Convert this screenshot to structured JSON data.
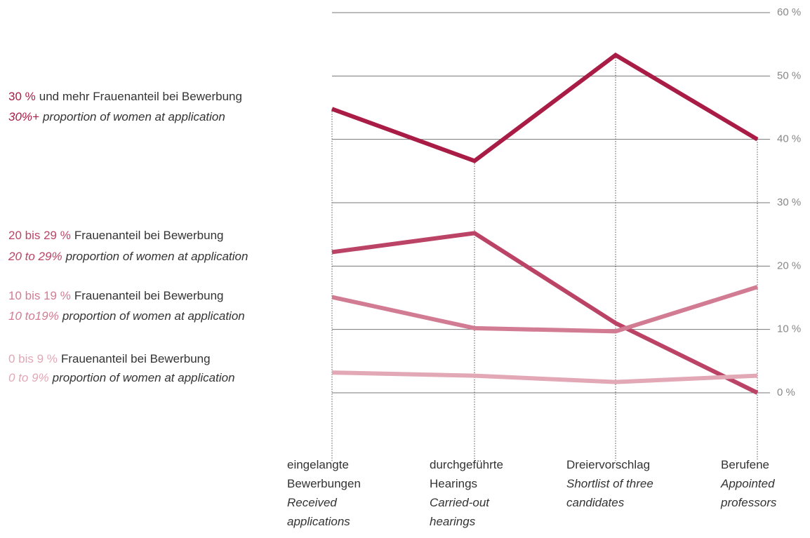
{
  "chart_data": {
    "type": "line",
    "categories": [
      {
        "de": [
          "eingelangte",
          "Bewerbungen"
        ],
        "en": [
          "Received",
          "applications"
        ]
      },
      {
        "de": [
          "durchgeführte",
          "Hearings"
        ],
        "en": [
          "Carried-out",
          "hearings"
        ]
      },
      {
        "de": [
          "Dreiervorschlag"
        ],
        "en": [
          "Shortlist of three",
          "candidates"
        ]
      },
      {
        "de": [
          "Berufene"
        ],
        "en": [
          "Appointed",
          "professors"
        ]
      }
    ],
    "series": [
      {
        "name": [
          "30 %",
          "und mehr Frauenanteil bei Bewerbung"
        ],
        "name_en": [
          "30%+",
          "proportion of women at application"
        ],
        "color": "#a81c45",
        "values": [
          44.8,
          36.6,
          53.3,
          40.0
        ]
      },
      {
        "name": [
          "20 bis 29 %",
          "Frauenanteil bei Bewerbung"
        ],
        "name_en": [
          "20 to 29%",
          "proportion of women at application"
        ],
        "color": "#bb4366",
        "values": [
          22.2,
          25.2,
          11.0,
          0.0
        ]
      },
      {
        "name": [
          "10 bis 19 %",
          "Frauenanteil bei Bewerbung"
        ],
        "name_en": [
          "10 to19%",
          "proportion of women at application"
        ],
        "color": "#d27c94",
        "values": [
          15.1,
          10.2,
          9.7,
          16.7
        ]
      },
      {
        "name": [
          "0 bis 9 %",
          "Frauenanteil bei Bewerbung"
        ],
        "name_en": [
          "0 to 9%",
          "proportion of women at application"
        ],
        "color": "#e2a8b6",
        "values": [
          3.2,
          2.7,
          1.7,
          2.7
        ]
      }
    ],
    "ylim": [
      -9,
      60
    ],
    "yticks": [
      {
        "value": 0,
        "label": "0 %"
      },
      {
        "value": 10,
        "label": "10 %"
      },
      {
        "value": 20,
        "label": "20 %"
      },
      {
        "value": 30,
        "label": "30 %"
      },
      {
        "value": 40,
        "label": "40 %"
      },
      {
        "value": 50,
        "label": "50 %"
      },
      {
        "value": 60,
        "label": "60 %"
      }
    ],
    "grid": true
  }
}
